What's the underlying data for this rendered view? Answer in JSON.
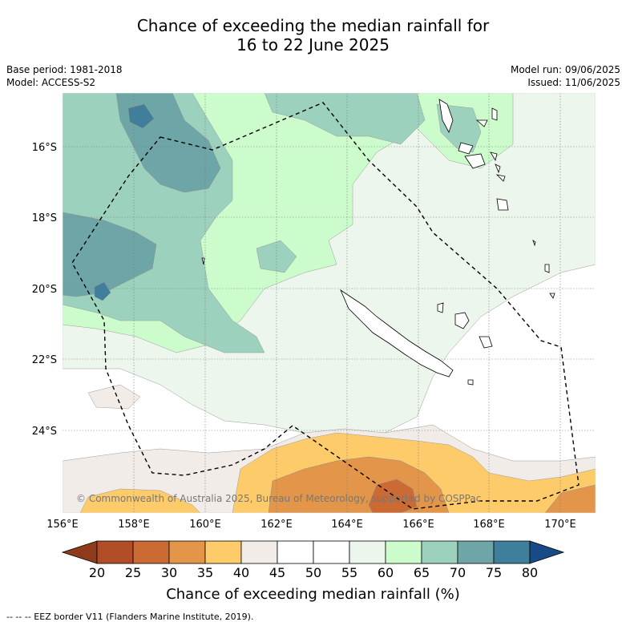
{
  "title": {
    "line1": "Chance of exceeding the median rainfall for",
    "line2": "16 to 22 June 2025"
  },
  "meta": {
    "base_period": "Base period: 1981-2018",
    "model": "Model: ACCESS-S2",
    "model_run": "Model run: 09/06/2025",
    "issued": "Issued: 11/06/2025"
  },
  "map": {
    "lat_labels": [
      "16°S",
      "18°S",
      "20°S",
      "22°S",
      "24°S"
    ],
    "lon_labels": [
      "156°E",
      "158°E",
      "160°E",
      "162°E",
      "164°E",
      "166°E",
      "168°E",
      "170°E"
    ],
    "copyright": "© Commonwealth of Australia 2025, Bureau of Meteorology, supported by COSPPac"
  },
  "colorbar": {
    "title": "Chance of exceeding median rainfall (%)",
    "ticks": [
      "20",
      "25",
      "30",
      "35",
      "40",
      "45",
      "50",
      "55",
      "60",
      "65",
      "70",
      "75",
      "80"
    ],
    "colors": [
      "#8e3b1c",
      "#b24e27",
      "#cc6a33",
      "#e39649",
      "#fecb6a",
      "#f2ece8",
      "#ffffff",
      "#ffffff",
      "#ecf6ec",
      "#ccfccc",
      "#9cd1bd",
      "#6ea6a8",
      "#407f9b",
      "#174a86"
    ]
  },
  "footer": "--  --  -- EEZ border V11 (Flanders Marine Institute, 2019)."
}
